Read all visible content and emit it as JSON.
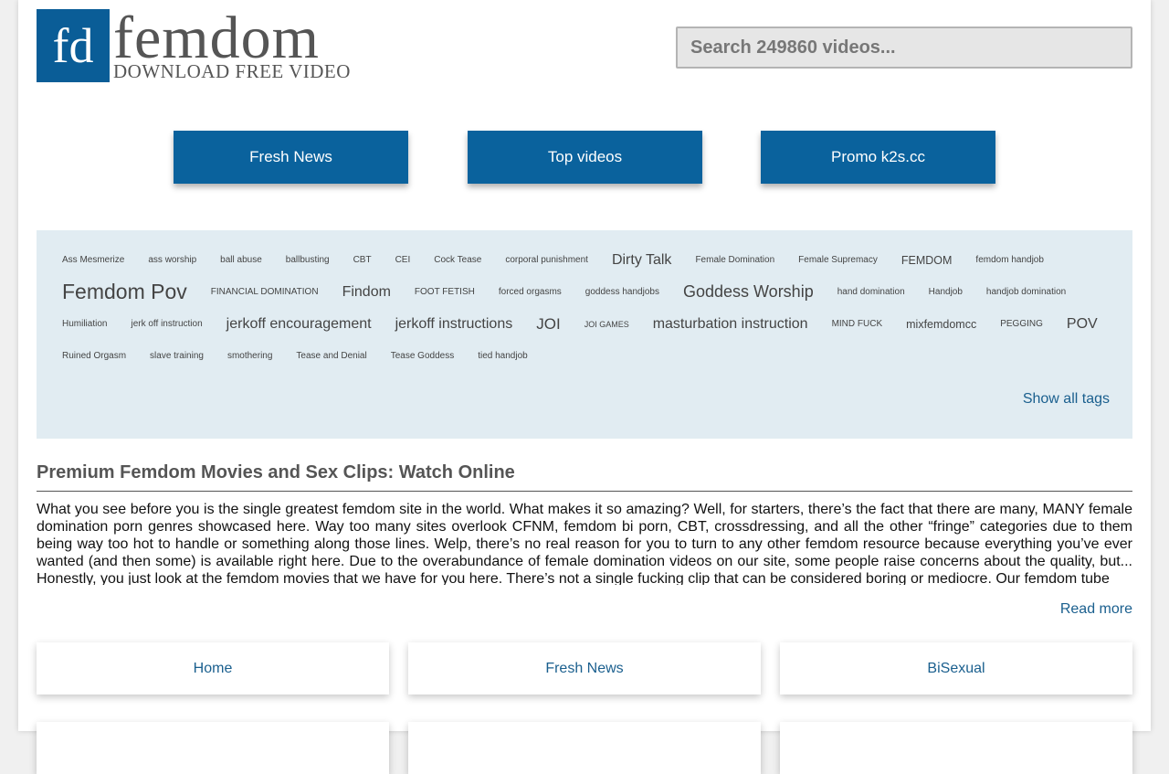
{
  "header": {
    "logo_mark": "fd",
    "logo_name": "femdom",
    "logo_tagline": "DOWNLOAD FREE VIDEO",
    "search_placeholder": "Search 249860 videos..."
  },
  "nav": [
    "Fresh News",
    "Top videos",
    "Promo k2s.cc"
  ],
  "tags": [
    "Ass Mesmerize",
    "ass worship",
    "ball abuse",
    "ballbusting",
    "CBT",
    "CEI",
    "Cock Tease",
    "corporal punishment",
    "Dirty Talk",
    "Female Domination",
    "Female Supremacy",
    "FEMDOM",
    "femdom handjob",
    "Femdom Pov",
    "FINANCIAL DOMINATION",
    "Findom",
    "FOOT FETISH",
    "forced orgasms",
    "goddess handjobs",
    "Goddess Worship",
    "hand domination",
    "Handjob",
    "handjob domination",
    "Humiliation",
    "jerk off instruction",
    "jerkoff encouragement",
    "jerkoff instructions",
    "JOI",
    "JOI GAMES",
    "masturbation instruction",
    "MIND FUCK",
    "mixfemdomcc",
    "PEGGING",
    "POV",
    "Ruined Orgasm",
    "slave training",
    "smothering",
    "Tease and Denial",
    "Tease Goddess",
    "tied handjob"
  ],
  "show_all_tags": "Show all tags",
  "article": {
    "title": "Premium Femdom Movies and Sex Clips: Watch Online",
    "text": "What you see before you is the single greatest femdom site in the world. What makes it so amazing? Well, for starters, there’s the fact that there are many, MANY female domination porn genres showcased here. Way too many sites overlook CFNM, femdom bi porn, CBT, crossdressing, and all the other “fringe” categories due to them being way too hot to handle or something along those lines. Welp, there’s no real reason for you to turn to any other femdom resource because everything you’ve ever wanted (and then some) is available right here. Due to the overabundance of female domination videos on our site, some people raise concerns about the quality, but... Honestly, you just look at the femdom movies that we have for you here. There’s not a single fucking clip that can be considered boring or mediocre. Our femdom tube",
    "read_more": "Read more"
  },
  "categories": [
    "Home",
    "Fresh News",
    "BiSexual"
  ]
}
